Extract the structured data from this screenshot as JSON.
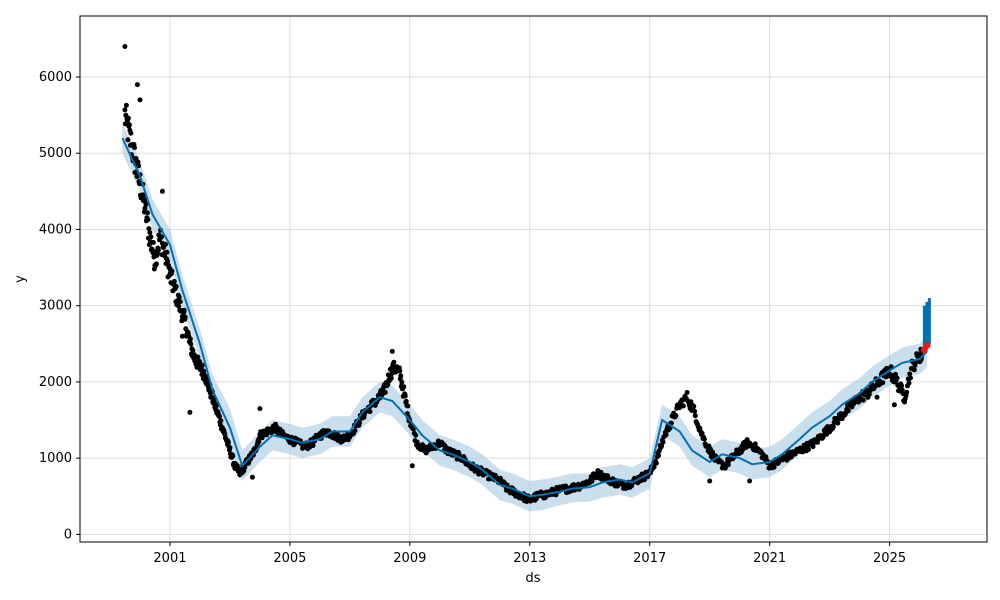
{
  "chart_data": {
    "type": "scatter",
    "title": "",
    "xlabel": "ds",
    "ylabel": "y",
    "x_ticks": [
      "2001",
      "2005",
      "2009",
      "2013",
      "2017",
      "2021",
      "2025"
    ],
    "y_ticks": [
      "0",
      "1000",
      "2000",
      "3000",
      "4000",
      "5000",
      "6000"
    ],
    "xlim": [
      "1998-01-01",
      "2028-04-01"
    ],
    "ylim": [
      -100,
      6800
    ],
    "grid": true,
    "legend": "none",
    "colors": {
      "observed": "#000000",
      "forecast_line": "#0072B2",
      "uncertainty_band": "#A6CAE3",
      "future_forecast": "#0072B2",
      "highlight_points": "#E31A1C"
    },
    "series": [
      {
        "kind": "forecast",
        "x": [
          "1999-06-01",
          "2000-01-01",
          "2000-06-01",
          "2001-01-01",
          "2001-06-01",
          "2002-01-01",
          "2002-06-01",
          "2003-01-01",
          "2003-06-01",
          "2004-01-01",
          "2004-06-01",
          "2005-01-01",
          "2005-06-01",
          "2006-01-01",
          "2006-06-01",
          "2007-01-01",
          "2007-06-01",
          "2008-01-01",
          "2008-06-01",
          "2009-01-01",
          "2009-06-01",
          "2010-01-01",
          "2010-06-01",
          "2011-01-01",
          "2011-06-01",
          "2012-01-01",
          "2012-06-01",
          "2013-01-01",
          "2013-06-01",
          "2014-01-01",
          "2014-06-01",
          "2015-01-01",
          "2015-06-01",
          "2016-01-01",
          "2016-06-01",
          "2017-01-01",
          "2017-06-01",
          "2018-01-01",
          "2018-06-01",
          "2019-01-01",
          "2019-06-01",
          "2020-01-01",
          "2020-06-01",
          "2021-01-01",
          "2021-06-01",
          "2022-01-01",
          "2022-06-01",
          "2023-01-01",
          "2023-06-01",
          "2024-01-01",
          "2024-06-01",
          "2025-01-01",
          "2025-06-01",
          "2026-01-01",
          "2026-04-01"
        ],
        "yhat": [
          5200,
          4700,
          4200,
          3800,
          3200,
          2500,
          1900,
          1400,
          900,
          1150,
          1300,
          1250,
          1200,
          1250,
          1350,
          1350,
          1600,
          1800,
          1750,
          1500,
          1300,
          1100,
          1050,
          950,
          850,
          650,
          600,
          500,
          520,
          560,
          600,
          620,
          680,
          720,
          680,
          800,
          1500,
          1350,
          1100,
          950,
          1050,
          1000,
          920,
          950,
          1050,
          1250,
          1400,
          1550,
          1700,
          1850,
          2000,
          2150,
          2250,
          2300,
          2400
        ],
        "lower": [
          5000,
          4500,
          4000,
          3600,
          3000,
          2300,
          1700,
          1150,
          700,
          950,
          1100,
          1050,
          1000,
          1050,
          1150,
          1150,
          1400,
          1600,
          1550,
          1300,
          1100,
          900,
          850,
          750,
          650,
          450,
          400,
          300,
          320,
          380,
          420,
          430,
          480,
          520,
          480,
          600,
          1300,
          1150,
          900,
          750,
          850,
          800,
          720,
          750,
          850,
          1050,
          1200,
          1350,
          1500,
          1650,
          1800,
          1950,
          2050,
          2100,
          2200
        ],
        "upper": [
          5400,
          4900,
          4400,
          4000,
          3400,
          2700,
          2100,
          1650,
          1100,
          1350,
          1500,
          1450,
          1400,
          1450,
          1550,
          1550,
          1800,
          2000,
          1950,
          1700,
          1500,
          1300,
          1250,
          1150,
          1050,
          850,
          800,
          700,
          720,
          760,
          800,
          800,
          880,
          920,
          880,
          1000,
          1700,
          1550,
          1300,
          1150,
          1250,
          1200,
          1120,
          1150,
          1250,
          1450,
          1600,
          1750,
          1900,
          2050,
          2200,
          2350,
          2450,
          2500,
          2600
        ]
      },
      {
        "kind": "observed",
        "x": [
          "1999-07-01",
          "1999-09-01",
          "1999-11-01",
          "2000-01-01",
          "2000-03-01",
          "2000-05-01",
          "2000-07-01",
          "2000-09-01",
          "2000-11-01",
          "2001-01-01",
          "2001-03-01",
          "2001-05-01",
          "2001-07-01",
          "2001-09-01",
          "2001-11-01",
          "2002-01-01",
          "2002-03-01",
          "2002-05-01",
          "2002-07-01",
          "2002-09-01",
          "2002-11-01",
          "2003-01-01",
          "2003-03-01",
          "2003-05-01",
          "2003-07-01",
          "2003-09-01",
          "2003-11-01",
          "2004-01-01",
          "2004-04-01",
          "2004-07-01",
          "2004-10-01",
          "2005-01-01",
          "2005-04-01",
          "2005-07-01",
          "2005-10-01",
          "2006-01-01",
          "2006-04-01",
          "2006-07-01",
          "2006-10-01",
          "2007-01-01",
          "2007-04-01",
          "2007-07-01",
          "2007-10-01",
          "2008-01-01",
          "2008-03-01",
          "2008-05-01",
          "2008-07-01",
          "2008-09-01",
          "2008-11-01",
          "2009-01-01",
          "2009-04-01",
          "2009-07-01",
          "2009-10-01",
          "2010-01-01",
          "2010-04-01",
          "2010-07-01",
          "2010-10-01",
          "2011-01-01",
          "2011-04-01",
          "2011-07-01",
          "2011-10-01",
          "2012-01-01",
          "2012-04-01",
          "2012-07-01",
          "2012-10-01",
          "2013-01-01",
          "2013-04-01",
          "2013-07-01",
          "2013-10-01",
          "2014-01-01",
          "2014-04-01",
          "2014-07-01",
          "2014-10-01",
          "2015-01-01",
          "2015-04-01",
          "2015-07-01",
          "2015-10-01",
          "2016-01-01",
          "2016-04-01",
          "2016-07-01",
          "2016-10-01",
          "2017-01-01",
          "2017-04-01",
          "2017-07-01",
          "2017-10-01",
          "2018-01-01",
          "2018-04-01",
          "2018-07-01",
          "2018-10-01",
          "2019-01-01",
          "2019-04-01",
          "2019-07-01",
          "2019-10-01",
          "2020-01-01",
          "2020-04-01",
          "2020-07-01",
          "2020-10-01",
          "2021-01-01",
          "2021-04-01",
          "2021-07-01",
          "2021-10-01",
          "2022-01-01",
          "2022-04-01",
          "2022-07-01",
          "2022-10-01",
          "2023-01-01",
          "2023-04-01",
          "2023-07-01",
          "2023-10-01",
          "2024-01-01",
          "2024-04-01",
          "2024-07-01",
          "2024-10-01",
          "2025-01-01",
          "2025-04-01",
          "2025-07-01",
          "2025-10-01",
          "2026-01-01"
        ],
        "y": [
          5500,
          5200,
          4900,
          4600,
          4300,
          3900,
          3600,
          3900,
          3700,
          3400,
          3200,
          3000,
          2800,
          2500,
          2300,
          2200,
          2100,
          1900,
          1700,
          1500,
          1300,
          1100,
          900,
          800,
          900,
          1000,
          1100,
          1300,
          1350,
          1400,
          1300,
          1250,
          1200,
          1150,
          1200,
          1300,
          1350,
          1300,
          1250,
          1300,
          1450,
          1600,
          1700,
          1800,
          1900,
          2100,
          2200,
          2100,
          1800,
          1500,
          1200,
          1100,
          1150,
          1200,
          1100,
          1050,
          1000,
          900,
          850,
          800,
          750,
          700,
          600,
          550,
          500,
          450,
          500,
          520,
          550,
          580,
          600,
          620,
          650,
          700,
          800,
          750,
          700,
          650,
          650,
          700,
          750,
          800,
          1000,
          1300,
          1500,
          1700,
          1800,
          1600,
          1300,
          1100,
          950,
          900,
          1000,
          1100,
          1200,
          1150,
          1050,
          900,
          950,
          1000,
          1050,
          1100,
          1150,
          1200,
          1300,
          1400,
          1500,
          1600,
          1700,
          1800,
          1850,
          1950,
          2050,
          2150,
          2000,
          1800,
          2200,
          2350
        ],
        "outliers": [
          [
            "1999-07-01",
            6400
          ],
          [
            "1999-12-01",
            5900
          ],
          [
            "2000-01-01",
            5700
          ],
          [
            "2000-10-01",
            4500
          ],
          [
            "2001-06-01",
            2600
          ],
          [
            "2001-09-01",
            1600
          ],
          [
            "2003-10-01",
            750
          ],
          [
            "2004-01-01",
            1650
          ],
          [
            "2008-06-01",
            2400
          ],
          [
            "2009-02-01",
            900
          ],
          [
            "2019-01-01",
            700
          ],
          [
            "2020-05-01",
            700
          ],
          [
            "2024-08-01",
            1800
          ],
          [
            "2025-03-01",
            1700
          ]
        ]
      },
      {
        "kind": "future",
        "x": [
          "2026-03-01",
          "2026-04-01",
          "2026-05-01"
        ],
        "low": [
          2400,
          2450,
          2500
        ],
        "high": [
          3000,
          3050,
          3100
        ]
      },
      {
        "kind": "highlight",
        "x": [
          "2026-03-01",
          "2026-04-01"
        ],
        "y": [
          2420,
          2480
        ]
      }
    ]
  }
}
